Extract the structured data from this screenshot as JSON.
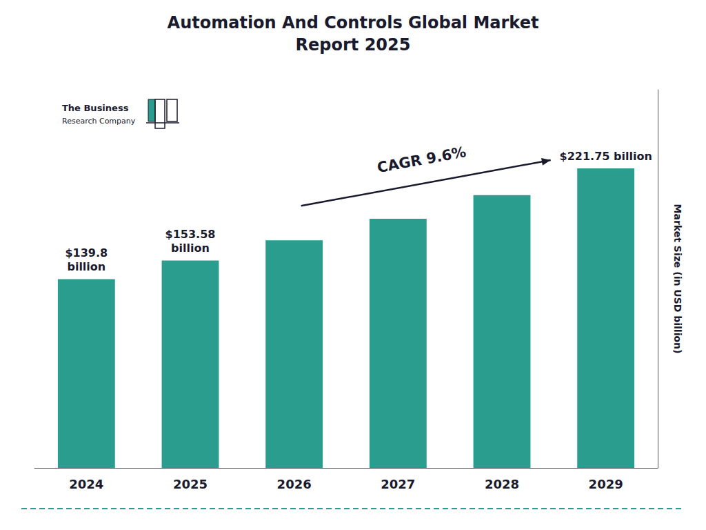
{
  "chart_data": {
    "type": "bar",
    "title": "Automation And Controls Global Market\nReport 2025",
    "ylabel": "Market Size (in USD billion)",
    "categories": [
      "2024",
      "2025",
      "2026",
      "2027",
      "2028",
      "2029"
    ],
    "values": [
      139.8,
      153.58,
      168.5,
      184.5,
      202.0,
      221.75
    ],
    "value_labels": [
      "$139.8\nbillion",
      "$153.58\nbillion",
      null,
      null,
      null,
      "$221.75 billion"
    ],
    "data_labels": true,
    "color": "#2a9d8f",
    "ylim": [
      0,
      280
    ],
    "grid": false,
    "tick_labels": "x",
    "annotations": [
      "CAGR 9.6%",
      "The Business",
      "Research Company"
    ]
  }
}
